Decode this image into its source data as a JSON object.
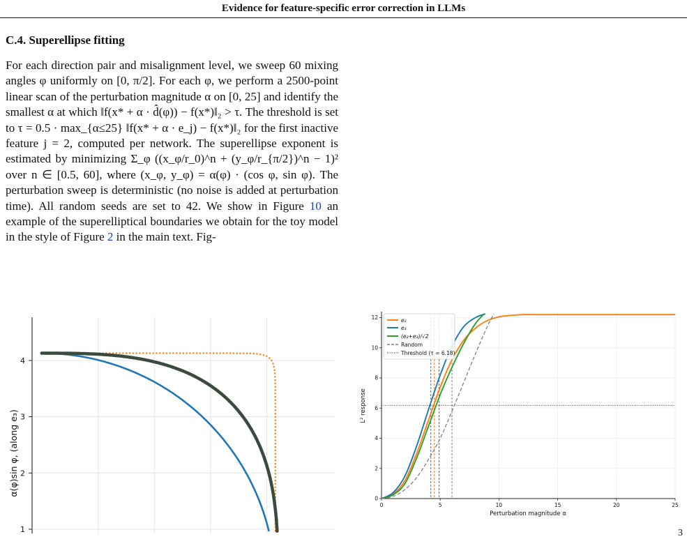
{
  "running_head": "Evidence for feature-specific error correction in LLMs",
  "section": {
    "number": "C.4.",
    "title": "Superellipse fitting"
  },
  "paragraph": {
    "s1": "For each direction pair and misalignment level, we sweep 60 mixing angles φ uniformly on [0, π/2].",
    "s2": "For each φ, we perform a 2500-point linear scan of the perturbation magnitude α on [0, 25] and identify the smallest α at which ‖f(x* + α · d̂(φ)) − f(x*)‖₂ > τ.",
    "s3": "The threshold is set to τ = 0.5 · max_{α≤25} ‖f(x* + α · e_j) − f(x*)‖₂ for the first inactive feature j = 2, computed per network.",
    "s4": "The superellipse exponent is estimated by minimizing Σ_φ ((x_φ/r_0)^n + (y_φ/r_{π/2})^n − 1)² over n ∈ [0.5, 60], where (x_φ, y_φ) = α(φ) · (cos φ, sin φ).",
    "s5": "The perturbation sweep is deterministic (no noise is added at perturbation time). All random seeds are set to 42.",
    "s6_pre": "We show in Figure",
    "figure_ref_1": "10",
    "s6_mid": "an example of the superelliptical boundaries we obtain for the toy model in the style of Figure",
    "figure_ref_2": "2",
    "s6_post": "in the main text. Fig-"
  },
  "left_chart": {
    "ylabel": "α(φ)sin φ, (along e₃)",
    "y_ticks": [
      "1",
      "2",
      "3",
      "4"
    ]
  },
  "right_chart": {
    "xlabel": "Perturbation magnitude α",
    "ylabel": "L² response",
    "x_ticks": [
      "0",
      "5",
      "10",
      "15",
      "20",
      "25"
    ],
    "y_ticks": [
      "0",
      "2",
      "4",
      "6",
      "8",
      "10",
      "12"
    ],
    "legend": [
      "e₂",
      "e₃",
      "(e₂+e₃)/√2",
      "Random",
      "Threshold (τ = 6.18)"
    ]
  },
  "colors": {
    "orange": "#ff7f0e",
    "blue": "#1f77b4",
    "green": "#2ca02c",
    "gray": "#7f7f7f",
    "dots": "#3b4a3e"
  },
  "chart_data": [
    {
      "type": "scatter",
      "ylabel": "α(φ)sin φ, (along e₃)",
      "ylim": [
        0.95,
        4.6
      ],
      "grid": true,
      "series": [
        {
          "style": "dotted-orange",
          "shape": "superellipse",
          "x_intercept": 4.15,
          "y_intercept": 4.13,
          "n": 30
        },
        {
          "style": "solid-blue",
          "shape": "superellipse",
          "x_intercept": 4.15,
          "y_intercept": 4.13,
          "n": 2
        },
        {
          "style": "dark-dots",
          "shape": "superellipse",
          "x_intercept": 4.2,
          "y_intercept": 4.13,
          "n": 3
        }
      ]
    },
    {
      "type": "line",
      "xlabel": "Perturbation magnitude α",
      "ylabel": "L² response",
      "xlim": [
        0,
        25
      ],
      "ylim": [
        0,
        12.2
      ],
      "legend_position": "top-left",
      "grid": true,
      "threshold": 6.18,
      "series": [
        {
          "name": "e₂",
          "color": "#ff7f0e",
          "x": [
            0,
            1,
            2,
            3,
            4,
            5,
            6,
            7,
            8,
            9,
            10,
            11,
            12,
            13,
            14,
            15,
            17,
            20,
            25
          ],
          "y": [
            0,
            0.3,
            1.2,
            3.0,
            5.2,
            7.4,
            9.2,
            10.5,
            11.3,
            11.8,
            12.05,
            12.15,
            12.2,
            12.2,
            12.2,
            12.2,
            12.2,
            12.2,
            12.2
          ]
        },
        {
          "name": "e₃",
          "color": "#1f77b4",
          "x": [
            0,
            1,
            2,
            3,
            4,
            5,
            6,
            7,
            8,
            9
          ],
          "y": [
            0,
            0.4,
            1.5,
            3.5,
            5.9,
            8.2,
            10.1,
            11.4,
            12.0,
            12.3
          ]
        },
        {
          "name": "(e₂+e₃)/√2",
          "color": "#2ca02c",
          "x": [
            0,
            1,
            2,
            3,
            4,
            5,
            6,
            7,
            8,
            8.8
          ],
          "y": [
            0,
            0.25,
            1.0,
            2.7,
            4.8,
            6.9,
            8.7,
            10.3,
            11.6,
            12.3
          ]
        },
        {
          "name": "Random",
          "color": "#7f7f7f",
          "x": [
            0,
            1,
            2,
            3,
            4,
            5,
            6,
            7,
            8,
            9,
            9.6
          ],
          "y": [
            0,
            0.15,
            0.6,
            1.4,
            2.6,
            4.0,
            5.8,
            7.7,
            9.6,
            11.4,
            12.3
          ]
        }
      ],
      "crossings": [
        4.2,
        4.5,
        4.9,
        6.0
      ]
    }
  ]
}
